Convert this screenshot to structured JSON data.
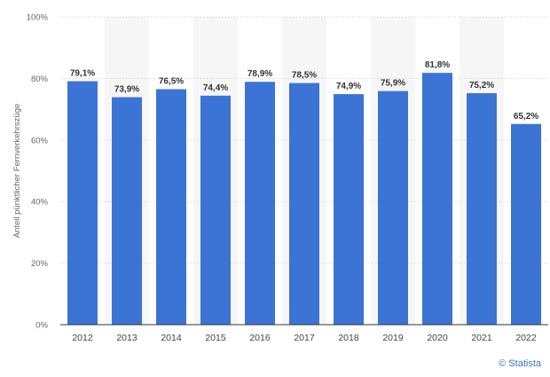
{
  "chart_data": {
    "type": "bar",
    "categories": [
      "2012",
      "2013",
      "2014",
      "2015",
      "2016",
      "2017",
      "2018",
      "2019",
      "2020",
      "2021",
      "2022"
    ],
    "values": [
      79.1,
      73.9,
      76.5,
      74.4,
      78.9,
      78.5,
      74.9,
      75.9,
      81.8,
      75.2,
      65.2
    ],
    "value_labels": [
      "79,1%",
      "73,9%",
      "76,5%",
      "74,4%",
      "78,9%",
      "78,5%",
      "74,9%",
      "75,9%",
      "81,8%",
      "75,2%",
      "65,2%"
    ],
    "title": "",
    "xlabel": "",
    "ylabel": "Anteil pünktlicher Fernverkehrszüge",
    "ylim": [
      0,
      100
    ],
    "yticks": [
      0,
      20,
      40,
      60,
      80,
      100
    ],
    "ytick_labels": [
      "0%",
      "20%",
      "40%",
      "60%",
      "80%",
      "100%"
    ],
    "grid": true,
    "bar_color": "#3c74d6"
  },
  "credit": "© Statista"
}
